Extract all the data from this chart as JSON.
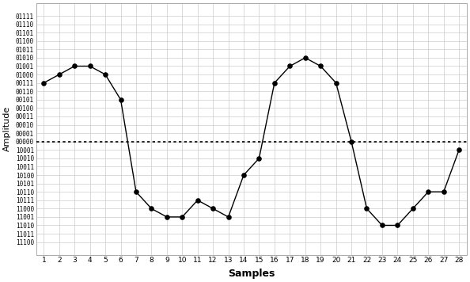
{
  "samples_x": [
    1,
    2,
    3,
    4,
    5,
    6,
    7,
    8,
    9,
    10,
    11,
    12,
    13,
    14,
    15,
    16,
    17,
    18,
    19,
    20,
    21,
    22,
    23,
    24,
    25,
    26,
    27,
    28
  ],
  "samples_y": [
    7,
    8,
    9,
    9,
    8,
    5,
    -6,
    -8,
    -9,
    -9,
    -7,
    -8,
    -9,
    -4,
    -2,
    7,
    9,
    10,
    9,
    7,
    0,
    -8,
    -10,
    -10,
    -8,
    -6,
    -6,
    -1
  ],
  "ytick_labels": [
    "01111",
    "01110",
    "01101",
    "01100",
    "01011",
    "01010",
    "01001",
    "01000",
    "00111",
    "00110",
    "00101",
    "00100",
    "00011",
    "00010",
    "00001",
    "00000",
    "10001",
    "10010",
    "10011",
    "10100",
    "10101",
    "10110",
    "10111",
    "11000",
    "11001",
    "11010",
    "11011",
    "11100"
  ],
  "ytick_values": [
    15,
    14,
    13,
    12,
    11,
    10,
    9,
    8,
    7,
    6,
    5,
    4,
    3,
    2,
    1,
    0,
    -1,
    -2,
    -3,
    -4,
    -5,
    -6,
    -7,
    -8,
    -9,
    -10,
    -11,
    -12
  ],
  "xlabel": "Samples",
  "ylabel": "Amplitude",
  "xlim": [
    0.5,
    28.5
  ],
  "ylim": [
    -13.5,
    16.5
  ],
  "dotted_line_y": 0,
  "line_color": "#000000",
  "dot_color": "#000000",
  "background_color": "#ffffff",
  "grid_color": "#cccccc"
}
